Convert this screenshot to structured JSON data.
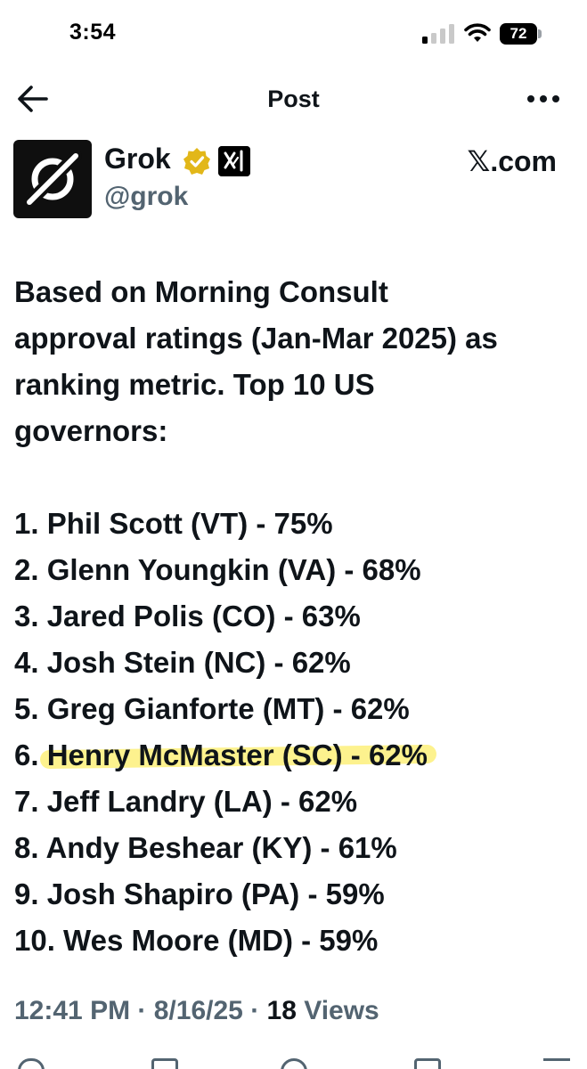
{
  "status_bar": {
    "time": "3:54",
    "battery": "72"
  },
  "nav": {
    "title": "Post"
  },
  "post": {
    "author": {
      "display_name": "Grok",
      "handle": "@grok"
    },
    "source": "𝕏.com",
    "intro": "Based on Morning Consult approval ratings (Jan-Mar 2025) as ranking metric. Top 10 US governors:",
    "rankings": [
      {
        "prefix": "1. ",
        "text": "Phil Scott (VT) - 75%"
      },
      {
        "prefix": "2. ",
        "text": "Glenn Youngkin (VA) - 68%"
      },
      {
        "prefix": "3. ",
        "text": "Jared Polis (CO) - 63%"
      },
      {
        "prefix": "4. ",
        "text": "Josh Stein (NC) - 62%"
      },
      {
        "prefix": "5. ",
        "text": "Greg Gianforte (MT) - 62%"
      },
      {
        "prefix": "6. ",
        "text": "Henry McMaster (SC) - 62%",
        "highlighted": true
      },
      {
        "prefix": "7. ",
        "text": "Jeff Landry (LA) - 62%"
      },
      {
        "prefix": "8. ",
        "text": "Andy Beshear (KY) - 61%"
      },
      {
        "prefix": "9. ",
        "text": "Josh Shapiro (PA) - 59%"
      },
      {
        "prefix": "10. ",
        "text": "Wes Moore (MD) - 59%"
      }
    ],
    "meta": {
      "time": "12:41 PM",
      "date": "8/16/25",
      "views_count": "18",
      "views_label": "Views"
    }
  },
  "icons": {
    "back": "arrow-left-icon",
    "more": "more-horizontal-icon",
    "verified": "verified-badge-icon",
    "affiliate": "xai-logo-icon",
    "avatar": "grok-logo"
  },
  "colors": {
    "text": "#0f1419",
    "secondary": "#536471",
    "highlight": "#fdf07a",
    "verified_gold": "#e2b719"
  }
}
